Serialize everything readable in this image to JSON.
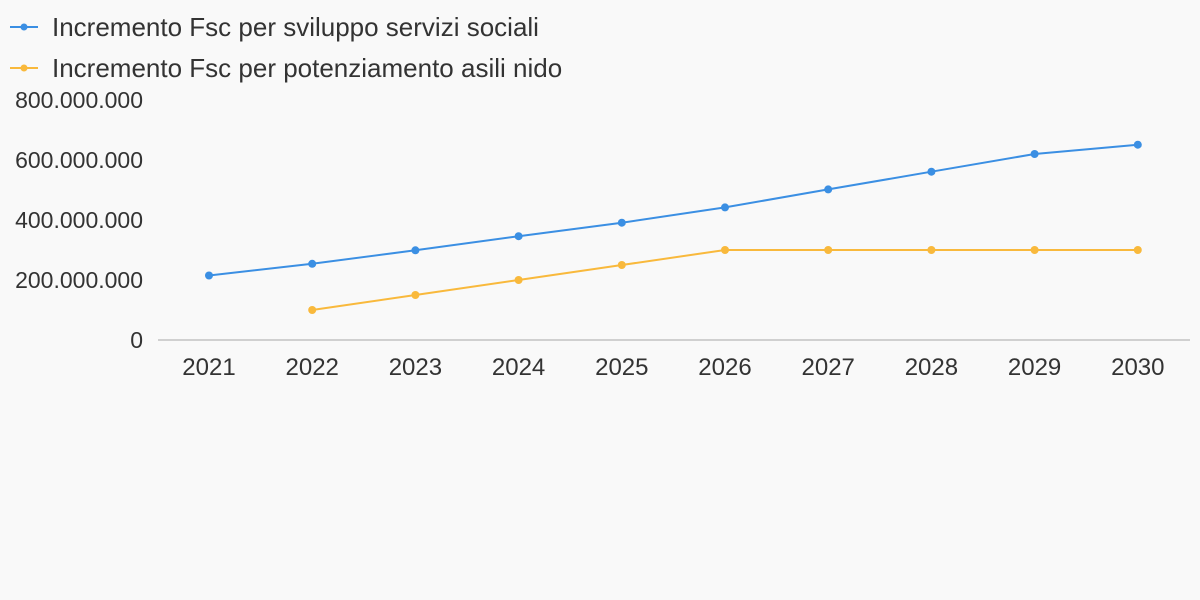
{
  "chart_data": {
    "type": "line",
    "title": "",
    "xlabel": "",
    "ylabel": "",
    "x": [
      "2021",
      "2022",
      "2023",
      "2024",
      "2025",
      "2026",
      "2027",
      "2028",
      "2029",
      "2030"
    ],
    "ylim": [
      0,
      800000000
    ],
    "yticks": [
      0,
      200000000,
      400000000,
      600000000,
      800000000
    ],
    "ytick_labels": [
      "0",
      "200.000.000",
      "400.000.000",
      "600.000.000",
      "800.000.000"
    ],
    "grid": false,
    "legend_position": "top-left",
    "series": [
      {
        "name": "Incremento Fsc per sviluppo servizi sociali",
        "color": "#3b8fe3",
        "values": [
          215000000,
          254000000,
          299000000,
          346000000,
          391000000,
          442000000,
          502000000,
          561000000,
          620000000,
          651000000
        ]
      },
      {
        "name": "Incremento Fsc per potenziamento asili nido",
        "color": "#f9b93c",
        "values": [
          null,
          100000000,
          150000000,
          200000000,
          250000000,
          300000000,
          300000000,
          300000000,
          300000000,
          300000000
        ]
      }
    ]
  }
}
